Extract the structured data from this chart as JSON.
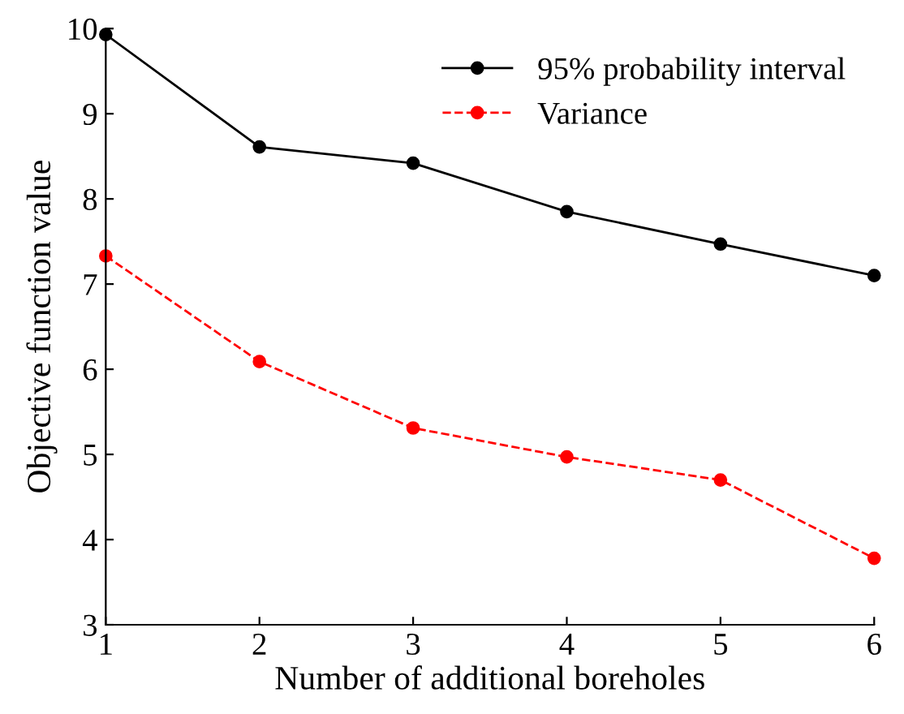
{
  "chart_data": {
    "type": "line",
    "xlabel": "Number of additional boreholes",
    "ylabel": "Objective function value",
    "x": [
      1,
      2,
      3,
      4,
      5,
      6
    ],
    "series": [
      {
        "name": "95% probability interval",
        "color": "#000000",
        "values": [
          9.93,
          8.61,
          8.42,
          7.85,
          7.47,
          7.1
        ],
        "line_style": "solid"
      },
      {
        "name": "Variance",
        "color": "#ff0000",
        "values": [
          7.33,
          6.09,
          5.31,
          4.97,
          4.7,
          3.78
        ],
        "line_style": "dashed"
      }
    ],
    "xlim": [
      1,
      6
    ],
    "xticks": [
      1,
      2,
      3,
      4,
      5,
      6
    ],
    "ylim": [
      3,
      10
    ],
    "yticks": [
      3,
      4,
      5,
      6,
      7,
      8,
      9,
      10
    ],
    "marker": "circle",
    "grid": false,
    "legend": "top right"
  }
}
